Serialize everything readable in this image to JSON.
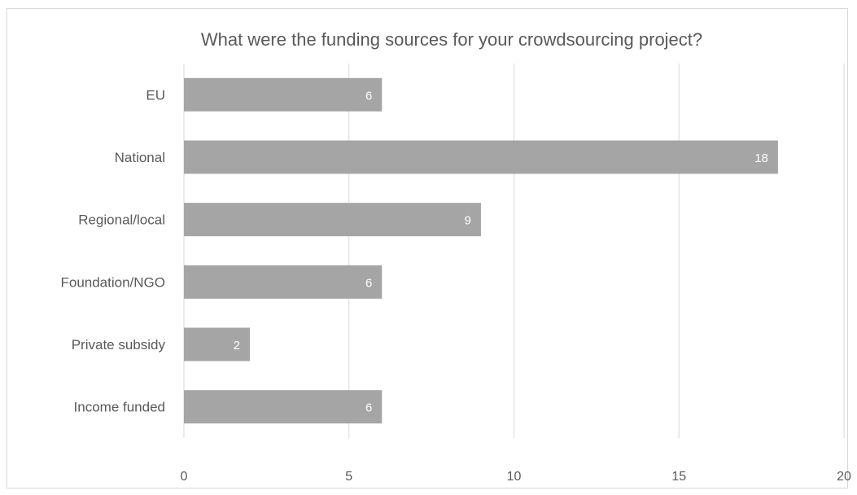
{
  "chart_data": {
    "type": "bar",
    "orientation": "horizontal",
    "title": "What were the funding sources for your crowdsourcing project?",
    "categories": [
      "EU",
      "National",
      "Regional/local",
      "Foundation/NGO",
      "Private subsidy",
      "Income funded"
    ],
    "values": [
      6,
      18,
      9,
      6,
      2,
      6
    ],
    "xlabel": "",
    "ylabel": "",
    "xlim": [
      0,
      20
    ],
    "xticks": [
      0,
      5,
      10,
      15,
      20
    ],
    "grid": "vertical",
    "legend": "none",
    "data_labels": true,
    "bar_color": "#a5a5a5",
    "label_color": "#ffffff"
  }
}
